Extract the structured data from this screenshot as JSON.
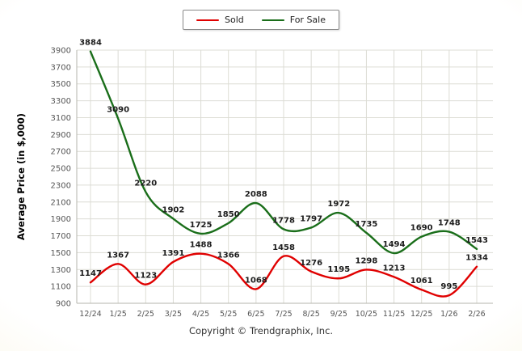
{
  "chart_data": {
    "type": "line",
    "categories": [
      "12/24",
      "1/25",
      "2/25",
      "3/25",
      "4/25",
      "5/25",
      "6/25",
      "7/25",
      "8/25",
      "9/25",
      "10/25",
      "11/25",
      "12/25",
      "1/26",
      "2/26"
    ],
    "series": [
      {
        "name": "Sold",
        "color": "#e00000",
        "values": [
          1147,
          1367,
          1123,
          1391,
          1488,
          1366,
          1068,
          1458,
          1276,
          1195,
          1298,
          1213,
          1061,
          995,
          1334
        ]
      },
      {
        "name": "For Sale",
        "color": "#1a6e1a",
        "values": [
          3884,
          3090,
          2220,
          1902,
          1725,
          1850,
          2088,
          1778,
          1797,
          1972,
          1735,
          1494,
          1690,
          1748,
          1543
        ]
      }
    ],
    "ylabel": "Average Price (in $,000)",
    "ylim": [
      900,
      3900
    ],
    "ytick_step": 200,
    "grid": true,
    "legend_position": "top-center"
  },
  "legend": {
    "sold_label": "Sold",
    "for_sale_label": "For Sale"
  },
  "footer": {
    "copyright": "Copyright © Trendgraphix, Inc."
  },
  "colors": {
    "grid": "#dcdcd4",
    "axis_line": "#b5b5ad",
    "axis_text": "#555555",
    "label_text": "#1c1c1c",
    "ylabel_text": "#000000"
  }
}
